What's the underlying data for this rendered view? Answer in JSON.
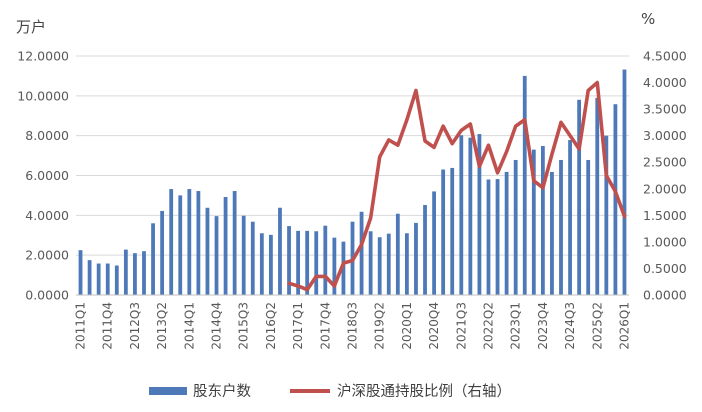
{
  "chart_data": {
    "type": "bar+line",
    "title": "",
    "left_unit": "万户",
    "right_unit": "%",
    "y_left": {
      "min": 0,
      "max": 12,
      "step": 2,
      "decimals": 4
    },
    "y_right": {
      "min": 0,
      "max": 4.5,
      "step": 0.5,
      "decimals": 4
    },
    "x_labels": [
      "2011Q1",
      "2011Q4",
      "2012Q3",
      "2013Q2",
      "2014Q1",
      "2014Q4",
      "2015Q3",
      "2016Q2",
      "2017Q1",
      "2017Q4",
      "2018Q3",
      "2019Q2",
      "2020Q1",
      "2020Q4",
      "2021Q3",
      "2022Q2",
      "2023Q1",
      "2023Q4",
      "2024Q3",
      "2025Q2",
      "2026Q1"
    ],
    "x_label_every": 3,
    "grid": true,
    "legend_position": "bottom",
    "series": [
      {
        "name": "股东户数",
        "type": "bar",
        "axis": "left",
        "color": "#4E79B8",
        "values": [
          2.25,
          1.75,
          1.58,
          1.58,
          1.48,
          2.28,
          2.1,
          2.2,
          3.6,
          4.22,
          5.32,
          5.0,
          5.32,
          5.22,
          4.38,
          3.96,
          4.92,
          5.22,
          3.98,
          3.68,
          3.1,
          3.02,
          4.38,
          3.46,
          3.22,
          3.22,
          3.2,
          3.48,
          2.88,
          2.68,
          3.68,
          4.18,
          3.2,
          2.9,
          3.08,
          4.08,
          3.1,
          3.62,
          4.52,
          5.2,
          6.3,
          6.38,
          8.02,
          7.9,
          8.08,
          5.8,
          5.82,
          6.18,
          6.78,
          11.0,
          7.3,
          7.48,
          6.18,
          6.78,
          7.78,
          9.8,
          6.78,
          9.9,
          8.0,
          9.58,
          11.32
        ]
      },
      {
        "name": "沪深股通持股比例（右轴）",
        "type": "line",
        "axis": "right",
        "color": "#C0504D",
        "start_index": 23,
        "values": [
          0.22,
          0.17,
          0.1,
          0.35,
          0.35,
          0.17,
          0.6,
          0.65,
          0.95,
          1.45,
          2.6,
          2.92,
          2.82,
          3.3,
          3.85,
          2.9,
          2.78,
          3.18,
          2.85,
          3.1,
          3.22,
          2.42,
          2.82,
          2.3,
          2.7,
          3.18,
          3.3,
          2.15,
          2.02,
          2.65,
          3.25,
          3.0,
          2.75,
          3.85,
          4.0,
          2.25,
          1.95,
          1.48
        ]
      }
    ]
  }
}
